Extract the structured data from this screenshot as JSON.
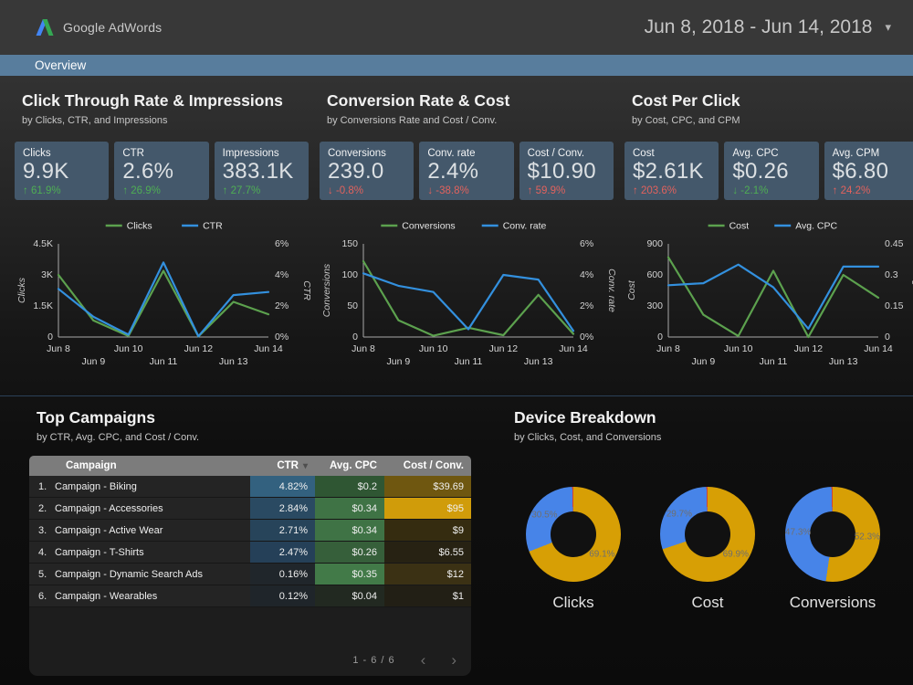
{
  "header": {
    "brand": "Google AdWords",
    "date_range": "Jun 8, 2018 - Jun 14, 2018"
  },
  "nav": {
    "tab": "Overview"
  },
  "icons": {
    "caret_down": "▾",
    "sort_desc": "▾",
    "chevron_left": "‹",
    "chevron_right": "›",
    "arrow_up": "↑",
    "arrow_down": "↓"
  },
  "colors": {
    "nav_bar": "#587d9d",
    "card_bg": "#44586b",
    "good": "#4fae54",
    "bad": "#e2625d",
    "line_green": "#5ca14e",
    "line_blue": "#3390de",
    "donut_gold": "#d79f05",
    "donut_blue": "#4784e8",
    "donut_red": "#cc4437",
    "table_header_bg": "#7c7c7c",
    "axis": "#a9a9a9"
  },
  "sections": [
    {
      "title": "Click Through Rate & Impressions",
      "subtitle": "by Clicks, CTR, and Impressions",
      "scorecards": [
        {
          "label": "Clicks",
          "value": "9.9K",
          "delta": "61.9%",
          "arrow": "up",
          "sentiment": "good"
        },
        {
          "label": "CTR",
          "value": "2.6%",
          "delta": "26.9%",
          "arrow": "up",
          "sentiment": "good"
        },
        {
          "label": "Impressions",
          "value": "383.1K",
          "delta": "27.7%",
          "arrow": "up",
          "sentiment": "good"
        }
      ]
    },
    {
      "title": "Conversion Rate & Cost",
      "subtitle": "by Conversions Rate and Cost / Conv.",
      "scorecards": [
        {
          "label": "Conversions",
          "value": "239.0",
          "delta": "-0.8%",
          "arrow": "down",
          "sentiment": "bad"
        },
        {
          "label": "Conv. rate",
          "value": "2.4%",
          "delta": "-38.8%",
          "arrow": "down",
          "sentiment": "bad"
        },
        {
          "label": "Cost / Conv.",
          "value": "$10.90",
          "delta": "59.9%",
          "arrow": "up",
          "sentiment": "bad"
        }
      ]
    },
    {
      "title": "Cost Per Click",
      "subtitle": "by Cost, CPC, and CPM",
      "scorecards": [
        {
          "label": "Cost",
          "value": "$2.61K",
          "delta": "203.6%",
          "arrow": "up",
          "sentiment": "bad"
        },
        {
          "label": "Avg. CPC",
          "value": "$0.26",
          "delta": "-2.1%",
          "arrow": "down",
          "sentiment": "good"
        },
        {
          "label": "Avg. CPM",
          "value": "$6.80",
          "delta": "24.2%",
          "arrow": "up",
          "sentiment": "bad"
        }
      ]
    }
  ],
  "chart_data": [
    {
      "type": "line",
      "title": "Clicks & CTR",
      "x": [
        "Jun 8",
        "Jun 9",
        "Jun 10",
        "Jun 11",
        "Jun 12",
        "Jun 13",
        "Jun 14"
      ],
      "series": [
        {
          "name": "Clicks",
          "axis": "left",
          "color": "green",
          "values": [
            3000,
            800,
            50,
            3200,
            30,
            1700,
            1100
          ]
        },
        {
          "name": "CTR",
          "axis": "right",
          "color": "blue",
          "values": [
            3.1,
            1.3,
            0.15,
            4.8,
            0.05,
            2.7,
            2.9
          ]
        }
      ],
      "left_axis": {
        "label": "Clicks",
        "min": 0,
        "max": 4500,
        "ticks": [
          "4.5K",
          "3K",
          "1.5K",
          "0"
        ]
      },
      "right_axis": {
        "label": "CTR",
        "min": 0,
        "max": 6,
        "ticks": [
          "6%",
          "4%",
          "2%",
          "0%"
        ]
      }
    },
    {
      "type": "line",
      "title": "Conversions & Conv. rate",
      "x": [
        "Jun 8",
        "Jun 9",
        "Jun 10",
        "Jun 11",
        "Jun 12",
        "Jun 13",
        "Jun 14"
      ],
      "series": [
        {
          "name": "Conversions",
          "axis": "left",
          "color": "green",
          "values": [
            122,
            27,
            2,
            15,
            3,
            68,
            5
          ]
        },
        {
          "name": "Conv. rate",
          "axis": "right",
          "color": "blue",
          "values": [
            4.1,
            3.3,
            2.9,
            0.5,
            4.0,
            3.7,
            0.4
          ]
        }
      ],
      "left_axis": {
        "label": "Conversions",
        "min": 0,
        "max": 150,
        "ticks": [
          "150",
          "100",
          "50",
          "0"
        ]
      },
      "right_axis": {
        "label": "Conv. rate",
        "min": 0,
        "max": 6,
        "ticks": [
          "6%",
          "4%",
          "2%",
          "0%"
        ]
      }
    },
    {
      "type": "line",
      "title": "Cost & Avg. CPC",
      "x": [
        "Jun 8",
        "Jun 9",
        "Jun 10",
        "Jun 11",
        "Jun 12",
        "Jun 13",
        "Jun 14"
      ],
      "series": [
        {
          "name": "Cost",
          "axis": "left",
          "color": "green",
          "values": [
            770,
            215,
            10,
            640,
            0,
            600,
            380
          ]
        },
        {
          "name": "Avg. CPC",
          "axis": "right",
          "color": "blue",
          "values": [
            0.25,
            0.26,
            0.35,
            0.24,
            0.04,
            0.34,
            0.34
          ]
        }
      ],
      "left_axis": {
        "label": "Cost",
        "min": 0,
        "max": 900,
        "ticks": [
          "900",
          "600",
          "300",
          "0"
        ]
      },
      "right_axis": {
        "label": "Avg. CPC",
        "min": 0,
        "max": 0.45,
        "ticks": [
          "0.45",
          "0.3",
          "0.15",
          "0"
        ]
      }
    },
    {
      "type": "pie",
      "title": "Clicks",
      "slices": [
        {
          "value": 69.1,
          "label": "69.1%",
          "color": "gold"
        },
        {
          "value": 30.5,
          "label": "30.5%",
          "color": "blue"
        },
        {
          "value": 0.4,
          "label": "",
          "color": "red"
        }
      ]
    },
    {
      "type": "pie",
      "title": "Cost",
      "slices": [
        {
          "value": 69.9,
          "label": "69.9%",
          "color": "gold"
        },
        {
          "value": 29.7,
          "label": "29.7%",
          "color": "blue"
        },
        {
          "value": 0.4,
          "label": "",
          "color": "red"
        }
      ]
    },
    {
      "type": "pie",
      "title": "Conversions",
      "slices": [
        {
          "value": 52.3,
          "label": "52.3%",
          "color": "gold"
        },
        {
          "value": 47.3,
          "label": "47.3%",
          "color": "blue"
        },
        {
          "value": 0.4,
          "label": "",
          "color": "red"
        }
      ]
    },
    {
      "type": "table",
      "columns": [
        "Campaign",
        "CTR",
        "Avg. CPC",
        "Cost / Conv."
      ],
      "sort_col": 1,
      "rows": [
        {
          "rank": "1.",
          "name": "Campaign - Biking",
          "ctr": "4.82%",
          "cpc": "$0.2",
          "cost_conv": "$39.69",
          "ctr_bg": "#33617f",
          "cpc_bg": "#2f5633",
          "cc_bg": "#6f5710"
        },
        {
          "rank": "2.",
          "name": "Campaign - Accessories",
          "ctr": "2.84%",
          "cpc": "$0.34",
          "cost_conv": "$95",
          "ctr_bg": "#2a4a62",
          "cpc_bg": "#3f7345",
          "cc_bg": "#d09c0a"
        },
        {
          "rank": "3.",
          "name": "Campaign - Active Wear",
          "ctr": "2.71%",
          "cpc": "$0.34",
          "cost_conv": "$9",
          "ctr_bg": "#27445a",
          "cpc_bg": "#3f7345",
          "cc_bg": "#352c10"
        },
        {
          "rank": "4.",
          "name": "Campaign - T-Shirts",
          "ctr": "2.47%",
          "cpc": "$0.26",
          "cost_conv": "$6.55",
          "ctr_bg": "#254058",
          "cpc_bg": "#365f3a",
          "cc_bg": "#272213"
        },
        {
          "rank": "5.",
          "name": "Campaign - Dynamic Search Ads",
          "ctr": "0.16%",
          "cpc": "$0.35",
          "cost_conv": "$12",
          "ctr_bg": "#20262b",
          "cpc_bg": "#427a48",
          "cc_bg": "#3b3114"
        },
        {
          "rank": "6.",
          "name": "Campaign - Wearables",
          "ctr": "0.12%",
          "cpc": "$0.04",
          "cost_conv": "$1",
          "ctr_bg": "#1f252a",
          "cpc_bg": "#222921",
          "cc_bg": "#221f15"
        }
      ]
    }
  ],
  "top_campaigns": {
    "title": "Top Campaigns",
    "subtitle": "by CTR, Avg. CPC, and Cost / Conv.",
    "pagination": {
      "label": "1 - 6 / 6"
    }
  },
  "device_breakdown": {
    "title": "Device Breakdown",
    "subtitle": "by Clicks, Cost, and Conversions"
  }
}
